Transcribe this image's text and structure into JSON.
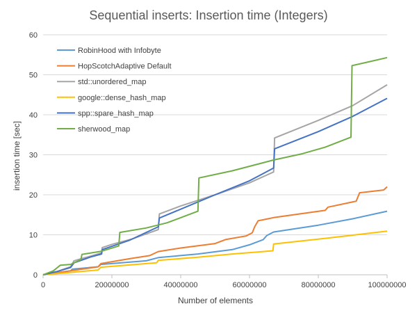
{
  "chart_data": {
    "type": "line",
    "title": "Sequential inserts: Insertion time (Integers)",
    "xlabel": "Number  of elements",
    "ylabel": "insertion time [sec]",
    "xlim": [
      0,
      100000000
    ],
    "ylim": [
      0,
      60
    ],
    "xticks": [
      0,
      20000000,
      40000000,
      60000000,
      80000000,
      100000000
    ],
    "xtick_labels": [
      "0",
      "20000000",
      "40000000",
      "60000000",
      "80000000",
      "100000000"
    ],
    "yticks": [
      0,
      10,
      20,
      30,
      40,
      50,
      60
    ],
    "ytick_labels": [
      "0",
      "10",
      "20",
      "30",
      "40",
      "50",
      "60"
    ],
    "grid": "horizontal",
    "legend_position": "top-left",
    "series": [
      {
        "name": "RobinHood with Infobyte",
        "color": "#5B9BD5",
        "points": [
          [
            0,
            0
          ],
          [
            4000000,
            0.5
          ],
          [
            8000000,
            1.0
          ],
          [
            8500000,
            1.4
          ],
          [
            16000000,
            2.0
          ],
          [
            16800000,
            2.6
          ],
          [
            30000000,
            3.5
          ],
          [
            33500000,
            4.3
          ],
          [
            45000000,
            5.2
          ],
          [
            55000000,
            6.3
          ],
          [
            60000000,
            7.5
          ],
          [
            64000000,
            8.8
          ],
          [
            65000000,
            9.8
          ],
          [
            67000000,
            10.7
          ],
          [
            80000000,
            12.4
          ],
          [
            90000000,
            14.0
          ],
          [
            100000000,
            15.9
          ]
        ]
      },
      {
        "name": "HopScotchAdaptive Default",
        "color": "#ED7D31",
        "points": [
          [
            0,
            0
          ],
          [
            8000000,
            1.0
          ],
          [
            16000000,
            2.0
          ],
          [
            16800000,
            2.8
          ],
          [
            25000000,
            4.0
          ],
          [
            31000000,
            4.8
          ],
          [
            33500000,
            5.8
          ],
          [
            40000000,
            6.7
          ],
          [
            50000000,
            7.8
          ],
          [
            53000000,
            8.8
          ],
          [
            59000000,
            9.7
          ],
          [
            60800000,
            10.5
          ],
          [
            61500000,
            12.0
          ],
          [
            62500000,
            13.5
          ],
          [
            67000000,
            14.3
          ],
          [
            82000000,
            16.1
          ],
          [
            82800000,
            16.9
          ],
          [
            91000000,
            18.4
          ],
          [
            92000000,
            20.5
          ],
          [
            99000000,
            21.2
          ],
          [
            100000000,
            22.0
          ]
        ]
      },
      {
        "name": "std::unordered_map",
        "color": "#A5A5A5",
        "points": [
          [
            0,
            0
          ],
          [
            4000000,
            0.8
          ],
          [
            8000000,
            2.0
          ],
          [
            9000000,
            3.5
          ],
          [
            11000000,
            4.0
          ],
          [
            14000000,
            4.7
          ],
          [
            17000000,
            5.5
          ],
          [
            17200000,
            6.8
          ],
          [
            20000000,
            7.6
          ],
          [
            26000000,
            9.0
          ],
          [
            33500000,
            11.3
          ],
          [
            33800000,
            15.2
          ],
          [
            40000000,
            17.2
          ],
          [
            50000000,
            20.0
          ],
          [
            60000000,
            23.0
          ],
          [
            67000000,
            25.7
          ],
          [
            67300000,
            34.2
          ],
          [
            80000000,
            38.6
          ],
          [
            90000000,
            42.3
          ],
          [
            100000000,
            47.5
          ]
        ]
      },
      {
        "name": "google::dense_hash_map",
        "color": "#FFC000",
        "points": [
          [
            0,
            0
          ],
          [
            8000000,
            0.6
          ],
          [
            16000000,
            1.2
          ],
          [
            16800000,
            1.9
          ],
          [
            33000000,
            3.0
          ],
          [
            33500000,
            3.6
          ],
          [
            45000000,
            4.4
          ],
          [
            55000000,
            5.2
          ],
          [
            66800000,
            6.0
          ],
          [
            67000000,
            7.7
          ],
          [
            80000000,
            8.9
          ],
          [
            90000000,
            9.9
          ],
          [
            100000000,
            10.9
          ]
        ]
      },
      {
        "name": "spp::spare_hash_map",
        "color": "#4472C4",
        "points": [
          [
            0,
            0
          ],
          [
            4000000,
            0.8
          ],
          [
            8000000,
            1.8
          ],
          [
            9000000,
            3.0
          ],
          [
            11000000,
            3.6
          ],
          [
            14000000,
            4.5
          ],
          [
            17000000,
            5.2
          ],
          [
            17200000,
            6.3
          ],
          [
            25000000,
            8.6
          ],
          [
            33500000,
            12.0
          ],
          [
            33800000,
            14.2
          ],
          [
            40000000,
            16.4
          ],
          [
            50000000,
            20.0
          ],
          [
            60000000,
            23.5
          ],
          [
            67000000,
            26.7
          ],
          [
            67300000,
            31.5
          ],
          [
            80000000,
            35.8
          ],
          [
            90000000,
            39.6
          ],
          [
            100000000,
            44.1
          ]
        ]
      },
      {
        "name": "sherwood_map",
        "color": "#70AD47",
        "points": [
          [
            0,
            0
          ],
          [
            3000000,
            1.0
          ],
          [
            5000000,
            2.4
          ],
          [
            8000000,
            2.6
          ],
          [
            11000000,
            3.8
          ],
          [
            11300000,
            5.1
          ],
          [
            17000000,
            5.9
          ],
          [
            22000000,
            7.2
          ],
          [
            22300000,
            10.6
          ],
          [
            30000000,
            11.7
          ],
          [
            36000000,
            13.0
          ],
          [
            45000000,
            15.9
          ],
          [
            45300000,
            24.2
          ],
          [
            55000000,
            26.0
          ],
          [
            67000000,
            28.7
          ],
          [
            75000000,
            30.2
          ],
          [
            82000000,
            31.9
          ],
          [
            89500000,
            34.4
          ],
          [
            89800000,
            52.3
          ],
          [
            95000000,
            53.3
          ],
          [
            100000000,
            54.3
          ]
        ]
      }
    ]
  }
}
